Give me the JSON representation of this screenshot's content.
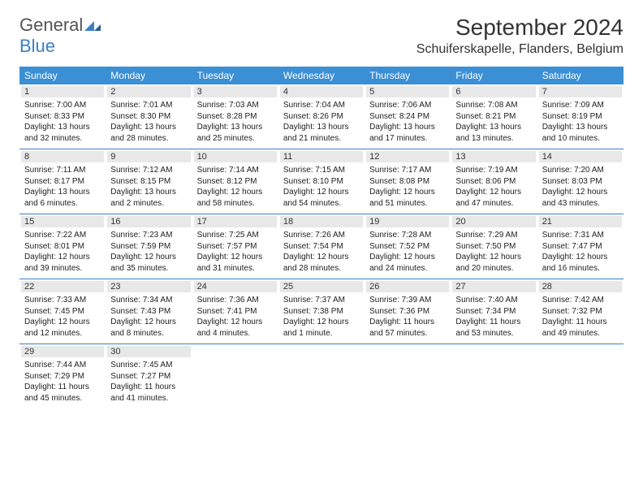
{
  "brand": {
    "name_main": "General",
    "name_sub": "Blue",
    "icon_color": "#3b7fc4"
  },
  "title": "September 2024",
  "location": "Schuiferskapelle, Flanders, Belgium",
  "colors": {
    "header_bg": "#3b8fd4",
    "header_text": "#ffffff",
    "day_bar_bg": "#e8e8e8",
    "row_border": "#3b7fc4"
  },
  "weekdays": [
    "Sunday",
    "Monday",
    "Tuesday",
    "Wednesday",
    "Thursday",
    "Friday",
    "Saturday"
  ],
  "weeks": [
    [
      {
        "num": "1",
        "sunrise": "Sunrise: 7:00 AM",
        "sunset": "Sunset: 8:33 PM",
        "daylight1": "Daylight: 13 hours",
        "daylight2": "and 32 minutes."
      },
      {
        "num": "2",
        "sunrise": "Sunrise: 7:01 AM",
        "sunset": "Sunset: 8:30 PM",
        "daylight1": "Daylight: 13 hours",
        "daylight2": "and 28 minutes."
      },
      {
        "num": "3",
        "sunrise": "Sunrise: 7:03 AM",
        "sunset": "Sunset: 8:28 PM",
        "daylight1": "Daylight: 13 hours",
        "daylight2": "and 25 minutes."
      },
      {
        "num": "4",
        "sunrise": "Sunrise: 7:04 AM",
        "sunset": "Sunset: 8:26 PM",
        "daylight1": "Daylight: 13 hours",
        "daylight2": "and 21 minutes."
      },
      {
        "num": "5",
        "sunrise": "Sunrise: 7:06 AM",
        "sunset": "Sunset: 8:24 PM",
        "daylight1": "Daylight: 13 hours",
        "daylight2": "and 17 minutes."
      },
      {
        "num": "6",
        "sunrise": "Sunrise: 7:08 AM",
        "sunset": "Sunset: 8:21 PM",
        "daylight1": "Daylight: 13 hours",
        "daylight2": "and 13 minutes."
      },
      {
        "num": "7",
        "sunrise": "Sunrise: 7:09 AM",
        "sunset": "Sunset: 8:19 PM",
        "daylight1": "Daylight: 13 hours",
        "daylight2": "and 10 minutes."
      }
    ],
    [
      {
        "num": "8",
        "sunrise": "Sunrise: 7:11 AM",
        "sunset": "Sunset: 8:17 PM",
        "daylight1": "Daylight: 13 hours",
        "daylight2": "and 6 minutes."
      },
      {
        "num": "9",
        "sunrise": "Sunrise: 7:12 AM",
        "sunset": "Sunset: 8:15 PM",
        "daylight1": "Daylight: 13 hours",
        "daylight2": "and 2 minutes."
      },
      {
        "num": "10",
        "sunrise": "Sunrise: 7:14 AM",
        "sunset": "Sunset: 8:12 PM",
        "daylight1": "Daylight: 12 hours",
        "daylight2": "and 58 minutes."
      },
      {
        "num": "11",
        "sunrise": "Sunrise: 7:15 AM",
        "sunset": "Sunset: 8:10 PM",
        "daylight1": "Daylight: 12 hours",
        "daylight2": "and 54 minutes."
      },
      {
        "num": "12",
        "sunrise": "Sunrise: 7:17 AM",
        "sunset": "Sunset: 8:08 PM",
        "daylight1": "Daylight: 12 hours",
        "daylight2": "and 51 minutes."
      },
      {
        "num": "13",
        "sunrise": "Sunrise: 7:19 AM",
        "sunset": "Sunset: 8:06 PM",
        "daylight1": "Daylight: 12 hours",
        "daylight2": "and 47 minutes."
      },
      {
        "num": "14",
        "sunrise": "Sunrise: 7:20 AM",
        "sunset": "Sunset: 8:03 PM",
        "daylight1": "Daylight: 12 hours",
        "daylight2": "and 43 minutes."
      }
    ],
    [
      {
        "num": "15",
        "sunrise": "Sunrise: 7:22 AM",
        "sunset": "Sunset: 8:01 PM",
        "daylight1": "Daylight: 12 hours",
        "daylight2": "and 39 minutes."
      },
      {
        "num": "16",
        "sunrise": "Sunrise: 7:23 AM",
        "sunset": "Sunset: 7:59 PM",
        "daylight1": "Daylight: 12 hours",
        "daylight2": "and 35 minutes."
      },
      {
        "num": "17",
        "sunrise": "Sunrise: 7:25 AM",
        "sunset": "Sunset: 7:57 PM",
        "daylight1": "Daylight: 12 hours",
        "daylight2": "and 31 minutes."
      },
      {
        "num": "18",
        "sunrise": "Sunrise: 7:26 AM",
        "sunset": "Sunset: 7:54 PM",
        "daylight1": "Daylight: 12 hours",
        "daylight2": "and 28 minutes."
      },
      {
        "num": "19",
        "sunrise": "Sunrise: 7:28 AM",
        "sunset": "Sunset: 7:52 PM",
        "daylight1": "Daylight: 12 hours",
        "daylight2": "and 24 minutes."
      },
      {
        "num": "20",
        "sunrise": "Sunrise: 7:29 AM",
        "sunset": "Sunset: 7:50 PM",
        "daylight1": "Daylight: 12 hours",
        "daylight2": "and 20 minutes."
      },
      {
        "num": "21",
        "sunrise": "Sunrise: 7:31 AM",
        "sunset": "Sunset: 7:47 PM",
        "daylight1": "Daylight: 12 hours",
        "daylight2": "and 16 minutes."
      }
    ],
    [
      {
        "num": "22",
        "sunrise": "Sunrise: 7:33 AM",
        "sunset": "Sunset: 7:45 PM",
        "daylight1": "Daylight: 12 hours",
        "daylight2": "and 12 minutes."
      },
      {
        "num": "23",
        "sunrise": "Sunrise: 7:34 AM",
        "sunset": "Sunset: 7:43 PM",
        "daylight1": "Daylight: 12 hours",
        "daylight2": "and 8 minutes."
      },
      {
        "num": "24",
        "sunrise": "Sunrise: 7:36 AM",
        "sunset": "Sunset: 7:41 PM",
        "daylight1": "Daylight: 12 hours",
        "daylight2": "and 4 minutes."
      },
      {
        "num": "25",
        "sunrise": "Sunrise: 7:37 AM",
        "sunset": "Sunset: 7:38 PM",
        "daylight1": "Daylight: 12 hours",
        "daylight2": "and 1 minute."
      },
      {
        "num": "26",
        "sunrise": "Sunrise: 7:39 AM",
        "sunset": "Sunset: 7:36 PM",
        "daylight1": "Daylight: 11 hours",
        "daylight2": "and 57 minutes."
      },
      {
        "num": "27",
        "sunrise": "Sunrise: 7:40 AM",
        "sunset": "Sunset: 7:34 PM",
        "daylight1": "Daylight: 11 hours",
        "daylight2": "and 53 minutes."
      },
      {
        "num": "28",
        "sunrise": "Sunrise: 7:42 AM",
        "sunset": "Sunset: 7:32 PM",
        "daylight1": "Daylight: 11 hours",
        "daylight2": "and 49 minutes."
      }
    ],
    [
      {
        "num": "29",
        "sunrise": "Sunrise: 7:44 AM",
        "sunset": "Sunset: 7:29 PM",
        "daylight1": "Daylight: 11 hours",
        "daylight2": "and 45 minutes."
      },
      {
        "num": "30",
        "sunrise": "Sunrise: 7:45 AM",
        "sunset": "Sunset: 7:27 PM",
        "daylight1": "Daylight: 11 hours",
        "daylight2": "and 41 minutes."
      },
      null,
      null,
      null,
      null,
      null
    ]
  ]
}
